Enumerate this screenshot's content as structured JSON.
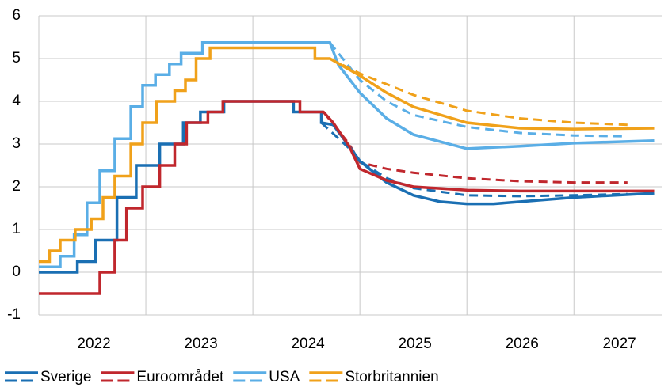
{
  "chart_data": {
    "type": "line",
    "xlim": [
      2022,
      2027.82
    ],
    "xticks": [
      2022,
      2023,
      2024,
      2025,
      2026,
      2027
    ],
    "ylim": [
      -1,
      6
    ],
    "yticks": [
      -1,
      0,
      1,
      2,
      3,
      4,
      5,
      6
    ],
    "grid": true,
    "legend": "bottom",
    "series": [
      {
        "name": "Sverige",
        "color": "#1a6fb3",
        "x": [
          2022,
          2022.36,
          2022.36,
          2022.53,
          2022.53,
          2022.73,
          2022.73,
          2022.91,
          2022.91,
          2023.13,
          2023.13,
          2023.35,
          2023.35,
          2023.51,
          2023.51,
          2023.73,
          2023.73,
          2024.38,
          2024.38,
          2024.64,
          2024.64,
          2024.75,
          2024.9,
          2025.0,
          2025.25,
          2025.5,
          2025.75,
          2026.0,
          2026.25,
          2026.5,
          2027.0,
          2027.75
        ],
        "values": [
          0,
          0,
          0.25,
          0.25,
          0.75,
          0.75,
          1.75,
          1.75,
          2.5,
          2.5,
          3,
          3,
          3.5,
          3.5,
          3.75,
          3.75,
          4,
          4,
          3.75,
          3.75,
          3.5,
          3.45,
          2.95,
          2.6,
          2.1,
          1.8,
          1.65,
          1.6,
          1.6,
          1.65,
          1.75,
          1.85
        ],
        "x_dashed": [
          2024.64,
          2024.9,
          2025.0,
          2025.25,
          2025.5,
          2026.0,
          2026.5,
          2027.0,
          2027.5
        ],
        "values_dashed": [
          3.5,
          2.9,
          2.6,
          2.2,
          1.97,
          1.8,
          1.78,
          1.8,
          1.83
        ]
      },
      {
        "name": "Euroområdet",
        "color": "#c0272d",
        "x": [
          2022,
          2022.57,
          2022.57,
          2022.71,
          2022.71,
          2022.82,
          2022.82,
          2022.97,
          2022.97,
          2023.13,
          2023.13,
          2023.27,
          2023.27,
          2023.38,
          2023.38,
          2023.58,
          2023.58,
          2023.72,
          2023.72,
          2024.44,
          2024.44,
          2024.66,
          2024.75,
          2024.9,
          2025.0,
          2025.25,
          2025.5,
          2026.0,
          2026.5,
          2027.0,
          2027.75
        ],
        "values": [
          -0.5,
          -0.5,
          0,
          0,
          0.75,
          0.75,
          1.5,
          1.5,
          2,
          2,
          2.5,
          2.5,
          3,
          3,
          3.5,
          3.5,
          3.75,
          3.75,
          4,
          4,
          3.75,
          3.75,
          3.5,
          2.95,
          2.42,
          2.15,
          2.0,
          1.92,
          1.9,
          1.9,
          1.9
        ],
        "x_dashed": [
          2024.66,
          2024.9,
          2025.0,
          2025.25,
          2025.5,
          2026.0,
          2026.5,
          2027.0,
          2027.5
        ],
        "values_dashed": [
          3.75,
          3.0,
          2.57,
          2.42,
          2.33,
          2.2,
          2.13,
          2.1,
          2.1
        ]
      },
      {
        "name": "USA",
        "color": "#5aaee6",
        "x": [
          2022,
          2022.2,
          2022.2,
          2022.33,
          2022.33,
          2022.45,
          2022.45,
          2022.57,
          2022.57,
          2022.71,
          2022.71,
          2022.86,
          2022.86,
          2022.97,
          2022.97,
          2023.09,
          2023.09,
          2023.22,
          2023.22,
          2023.33,
          2023.33,
          2023.53,
          2023.53,
          2024.72,
          2024.8,
          2025.0,
          2025.25,
          2025.5,
          2026.0,
          2026.5,
          2027.0,
          2027.75
        ],
        "values": [
          0.125,
          0.125,
          0.375,
          0.375,
          0.875,
          0.875,
          1.625,
          1.625,
          2.375,
          2.375,
          3.125,
          3.125,
          3.875,
          3.875,
          4.375,
          4.375,
          4.625,
          4.625,
          4.875,
          4.875,
          5.125,
          5.125,
          5.375,
          5.375,
          4.85,
          4.2,
          3.6,
          3.22,
          2.89,
          2.95,
          3.02,
          3.08
        ],
        "x_dashed": [
          2024.72,
          2025.0,
          2025.25,
          2025.5,
          2026.0,
          2026.5,
          2027.0,
          2027.5
        ],
        "values_dashed": [
          5.375,
          4.5,
          4.0,
          3.68,
          3.4,
          3.26,
          3.2,
          3.18
        ]
      },
      {
        "name": "Storbritannien",
        "color": "#f0a11a",
        "x": [
          2022,
          2022.1,
          2022.1,
          2022.2,
          2022.2,
          2022.34,
          2022.34,
          2022.49,
          2022.49,
          2022.6,
          2022.6,
          2022.71,
          2022.71,
          2022.86,
          2022.86,
          2022.97,
          2022.97,
          2023.1,
          2023.1,
          2023.27,
          2023.27,
          2023.37,
          2023.37,
          2023.47,
          2023.47,
          2023.6,
          2023.6,
          2024.58,
          2024.58,
          2024.72,
          2025.0,
          2025.25,
          2025.5,
          2026.0,
          2026.5,
          2027.0,
          2027.75
        ],
        "values": [
          0.25,
          0.25,
          0.5,
          0.5,
          0.75,
          0.75,
          1.0,
          1.0,
          1.25,
          1.25,
          1.75,
          1.75,
          2.25,
          2.25,
          3.0,
          3.0,
          3.5,
          3.5,
          4.0,
          4.0,
          4.25,
          4.25,
          4.5,
          4.5,
          5.0,
          5.0,
          5.25,
          5.25,
          5.0,
          5.0,
          4.6,
          4.2,
          3.87,
          3.5,
          3.37,
          3.35,
          3.37
        ],
        "x_dashed": [
          2024.72,
          2025.0,
          2025.25,
          2025.5,
          2026.0,
          2026.5,
          2027.0,
          2027.5
        ],
        "values_dashed": [
          5.0,
          4.65,
          4.4,
          4.15,
          3.78,
          3.6,
          3.5,
          3.45
        ]
      }
    ]
  }
}
